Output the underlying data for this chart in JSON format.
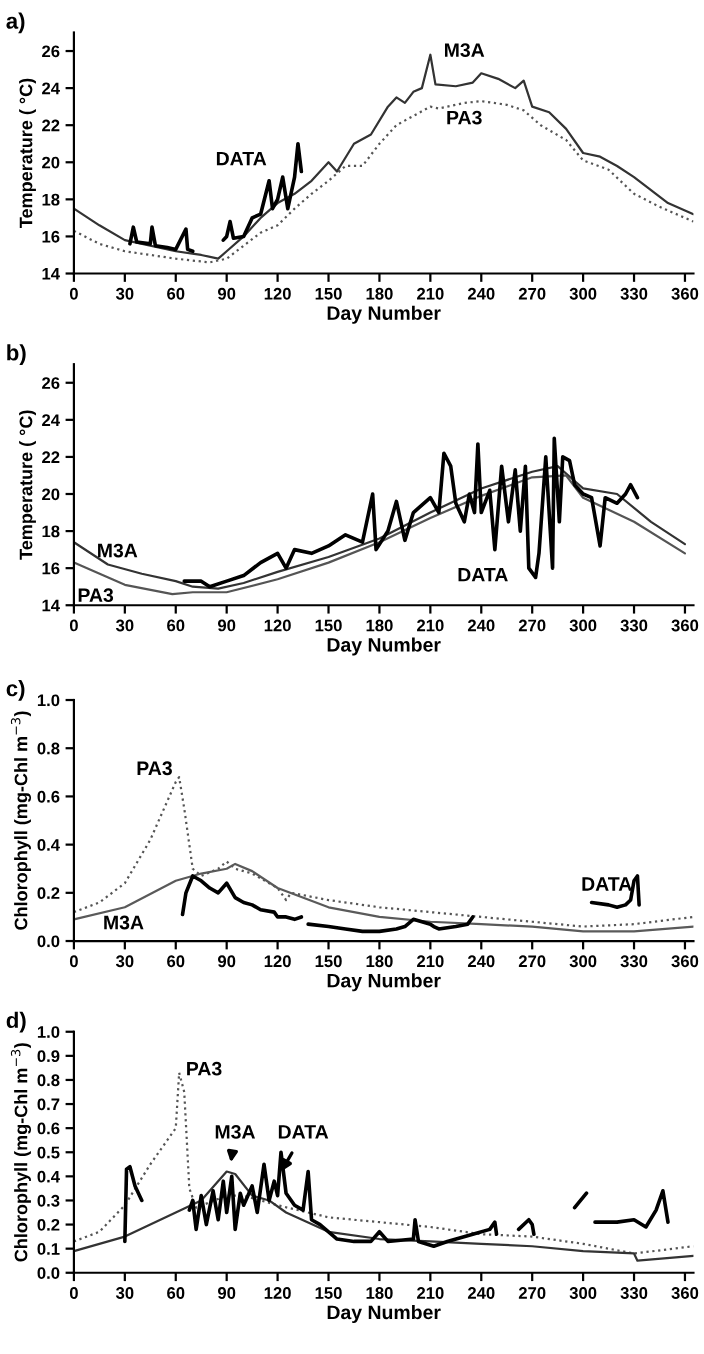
{
  "chart_data": [
    {
      "type": "line",
      "title": "a)",
      "xlabel": "Day Number",
      "ylabel": "Temperature ( °C)",
      "xlim": [
        0,
        365
      ],
      "xticks": [
        0,
        30,
        60,
        90,
        120,
        150,
        180,
        210,
        240,
        270,
        300,
        330,
        360
      ],
      "ylim": [
        14,
        27
      ],
      "yticks": [
        14,
        16,
        18,
        20,
        22,
        24,
        26
      ],
      "grid": false,
      "legend": false,
      "series": [
        {
          "name": "M3A",
          "color": "#333333",
          "line_style": "solid",
          "x": [
            0,
            15,
            30,
            60,
            75,
            85,
            90,
            100,
            110,
            120,
            130,
            140,
            150,
            155,
            165,
            175,
            185,
            190,
            195,
            200,
            205,
            210,
            213,
            225,
            235,
            240,
            250,
            260,
            265,
            270,
            280,
            290,
            300,
            310,
            320,
            330,
            340,
            350,
            365
          ],
          "values": [
            17.5,
            16.6,
            15.8,
            15.2,
            15.0,
            14.8,
            15.2,
            16.0,
            17.0,
            17.8,
            18.3,
            19.0,
            20.0,
            19.5,
            21.0,
            21.5,
            23.0,
            23.5,
            23.2,
            23.8,
            24.0,
            25.8,
            24.2,
            24.1,
            24.3,
            24.8,
            24.5,
            24.0,
            24.4,
            23.0,
            22.7,
            21.8,
            20.5,
            20.3,
            19.8,
            19.2,
            18.5,
            17.8,
            17.2
          ]
        },
        {
          "name": "PA3",
          "color": "#555555",
          "line_style": "dotted",
          "x": [
            0,
            15,
            30,
            60,
            80,
            90,
            100,
            110,
            120,
            130,
            140,
            150,
            160,
            170,
            180,
            190,
            200,
            210,
            215,
            230,
            240,
            255,
            265,
            275,
            290,
            300,
            315,
            330,
            345,
            365
          ],
          "values": [
            16.3,
            15.6,
            15.2,
            14.8,
            14.6,
            14.8,
            15.5,
            16.2,
            16.6,
            17.5,
            18.3,
            19.0,
            19.8,
            19.8,
            21.0,
            22.0,
            22.5,
            23.0,
            22.9,
            23.2,
            23.3,
            23.1,
            22.8,
            22.0,
            21.2,
            20.1,
            19.6,
            18.3,
            17.6,
            16.8
          ]
        },
        {
          "name": "DATA",
          "color": "#000000",
          "line_style": "solid",
          "x": [
            33,
            35,
            37,
            45,
            46,
            48,
            55,
            60,
            66,
            67,
            70,
            80,
            88,
            90,
            92,
            94,
            100,
            105,
            110,
            115,
            117,
            120,
            123,
            126,
            130,
            132,
            134
          ],
          "values": [
            15.6,
            16.5,
            15.7,
            15.6,
            16.5,
            15.5,
            15.4,
            15.3,
            16.4,
            15.3,
            15.2,
            null,
            15.8,
            16.0,
            16.8,
            15.9,
            16.0,
            17.0,
            17.2,
            19.0,
            17.5,
            18.0,
            19.2,
            17.5,
            19.2,
            21.0,
            19.5
          ]
        }
      ]
    },
    {
      "type": "line",
      "title": "b)",
      "xlabel": "Day Number",
      "ylabel": "Temperature ( °C)",
      "xlim": [
        0,
        365
      ],
      "xticks": [
        0,
        30,
        60,
        90,
        120,
        150,
        180,
        210,
        240,
        270,
        300,
        330,
        360
      ],
      "ylim": [
        14,
        27
      ],
      "yticks": [
        14,
        16,
        18,
        20,
        22,
        24,
        26
      ],
      "grid": false,
      "legend": false,
      "series": [
        {
          "name": "M3A",
          "color": "#333333",
          "line_style": "solid",
          "x": [
            0,
            20,
            40,
            60,
            70,
            85,
            100,
            120,
            150,
            180,
            210,
            240,
            270,
            285,
            295,
            300,
            320,
            340,
            360
          ],
          "values": [
            17.4,
            16.2,
            15.7,
            15.3,
            15.0,
            14.9,
            15.2,
            15.8,
            16.6,
            17.6,
            19.0,
            20.3,
            21.2,
            21.5,
            20.7,
            20.3,
            20.0,
            18.5,
            17.3
          ]
        },
        {
          "name": "PA3",
          "color": "#555555",
          "line_style": "solid",
          "x": [
            0,
            30,
            58,
            70,
            90,
            120,
            150,
            180,
            210,
            240,
            270,
            290,
            300,
            330,
            360
          ],
          "values": [
            16.3,
            15.1,
            14.6,
            14.7,
            14.7,
            15.4,
            16.3,
            17.4,
            18.7,
            19.9,
            20.9,
            21.0,
            19.8,
            18.5,
            16.8
          ]
        },
        {
          "name": "DATA",
          "color": "#000000",
          "line_style": "solid",
          "x": [
            65,
            75,
            80,
            90,
            100,
            110,
            120,
            125,
            130,
            140,
            150,
            160,
            170,
            176,
            178,
            185,
            190,
            195,
            200,
            210,
            215,
            218,
            222,
            225,
            230,
            233,
            236,
            238,
            240,
            245,
            248,
            252,
            256,
            260,
            263,
            266,
            268,
            272,
            274,
            278,
            280,
            282,
            283,
            286,
            288,
            292,
            295,
            300,
            305,
            310,
            313,
            320,
            325,
            328,
            332
          ],
          "values": [
            15.3,
            15.3,
            15.0,
            15.3,
            15.6,
            16.3,
            16.8,
            16.0,
            17.0,
            16.8,
            17.2,
            17.8,
            17.4,
            20.0,
            17.0,
            18.0,
            19.6,
            17.5,
            19.0,
            19.8,
            19.0,
            22.2,
            21.5,
            19.5,
            18.5,
            20.0,
            19.0,
            22.7,
            19.0,
            20.2,
            17.0,
            21.5,
            18.5,
            21.3,
            18.0,
            21.5,
            16.0,
            15.5,
            16.8,
            22.0,
            19.0,
            16.0,
            23.0,
            18.5,
            22.0,
            21.8,
            20.5,
            20.0,
            19.8,
            17.2,
            19.8,
            19.5,
            20.0,
            20.5,
            19.8
          ]
        }
      ]
    },
    {
      "type": "line",
      "title": "c)",
      "xlabel": "Day Number",
      "ylabel": "Chlorophyll (mg-Chl m$^{−3}$)",
      "xlim": [
        0,
        365
      ],
      "xticks": [
        0,
        30,
        60,
        90,
        120,
        150,
        180,
        210,
        240,
        270,
        300,
        330,
        360
      ],
      "ylim": [
        0,
        1
      ],
      "yticks": [
        {
          "value": 0,
          "label": "0.0"
        },
        {
          "value": 0.2,
          "label": "0.2"
        },
        {
          "value": 0.4,
          "label": "0.4"
        },
        {
          "value": 0.6,
          "label": "0.6"
        },
        {
          "value": 0.8,
          "label": "0.8"
        },
        {
          "value": 1,
          "label": "1.0"
        }
      ],
      "grid": false,
      "legend": false,
      "series": [
        {
          "name": "PA3",
          "color": "#555555",
          "line_style": "dotted",
          "x": [
            0,
            15,
            30,
            45,
            55,
            60,
            62,
            65,
            70,
            75,
            85,
            90,
            95,
            105,
            120,
            125,
            128,
            150,
            180,
            210,
            240,
            270,
            300,
            330,
            365
          ],
          "values": [
            0.12,
            0.16,
            0.24,
            0.42,
            0.58,
            0.66,
            0.68,
            0.55,
            0.3,
            0.27,
            0.3,
            0.33,
            0.3,
            0.28,
            0.22,
            0.17,
            0.2,
            0.17,
            0.14,
            0.12,
            0.1,
            0.08,
            0.06,
            0.07,
            0.1
          ]
        },
        {
          "name": "M3A",
          "color": "#5a5a5a",
          "line_style": "solid",
          "x": [
            0,
            30,
            60,
            75,
            90,
            95,
            105,
            120,
            150,
            180,
            210,
            240,
            270,
            300,
            330,
            365
          ],
          "values": [
            0.09,
            0.14,
            0.25,
            0.28,
            0.3,
            0.32,
            0.29,
            0.22,
            0.14,
            0.1,
            0.08,
            0.07,
            0.06,
            0.04,
            0.04,
            0.06
          ]
        },
        {
          "name": "DATA",
          "color": "#000000",
          "line_style": "solid",
          "x": [
            64,
            66,
            70,
            75,
            80,
            85,
            90,
            95,
            100,
            105,
            110,
            118,
            120,
            125,
            130,
            134,
            136,
            138,
            150,
            160,
            170,
            180,
            190,
            195,
            200,
            205,
            210,
            212,
            215,
            225,
            232,
            235,
            270,
            305,
            315,
            320,
            325,
            328,
            330,
            332,
            333
          ],
          "values": [
            0.11,
            0.2,
            0.27,
            0.25,
            0.22,
            0.2,
            0.24,
            0.18,
            0.16,
            0.15,
            0.13,
            0.12,
            0.1,
            0.1,
            0.09,
            0.1,
            null,
            0.07,
            0.06,
            0.05,
            0.04,
            0.04,
            0.05,
            0.06,
            0.09,
            0.08,
            0.07,
            0.06,
            0.05,
            0.06,
            0.07,
            0.1,
            null,
            0.16,
            0.15,
            0.14,
            0.15,
            0.17,
            0.25,
            0.27,
            0.15
          ]
        }
      ]
    },
    {
      "type": "line",
      "title": "d)",
      "xlabel": "Day Number",
      "ylabel": "Chlorophyll (mg-Chl m$^{−3}$)",
      "xlim": [
        0,
        365
      ],
      "xticks": [
        0,
        30,
        60,
        90,
        120,
        150,
        180,
        210,
        240,
        270,
        300,
        330,
        360
      ],
      "ylim": [
        0,
        1
      ],
      "yticks": [
        {
          "value": 0,
          "label": "0.0"
        },
        {
          "value": 0.1,
          "label": "0.1"
        },
        {
          "value": 0.2,
          "label": "0.2"
        },
        {
          "value": 0.3,
          "label": "0.3"
        },
        {
          "value": 0.4,
          "label": "0.4"
        },
        {
          "value": 0.5,
          "label": "0.5"
        },
        {
          "value": 0.6,
          "label": "0.6"
        },
        {
          "value": 0.7,
          "label": "0.7"
        },
        {
          "value": 0.8,
          "label": "0.8"
        },
        {
          "value": 0.9,
          "label": "0.9"
        },
        {
          "value": 1,
          "label": "1.0"
        }
      ],
      "grid": false,
      "legend": false,
      "series": [
        {
          "name": "PA3",
          "color": "#555555",
          "line_style": "dotted",
          "x": [
            0,
            15,
            30,
            45,
            55,
            60,
            62,
            65,
            68,
            72,
            90,
            100,
            110,
            120,
            150,
            180,
            210,
            240,
            270,
            300,
            330,
            365
          ],
          "values": [
            0.13,
            0.17,
            0.28,
            0.45,
            0.55,
            0.6,
            0.83,
            0.75,
            0.35,
            0.27,
            0.32,
            0.32,
            0.3,
            0.28,
            0.23,
            0.21,
            0.19,
            0.16,
            0.15,
            0.12,
            0.08,
            0.11
          ]
        },
        {
          "name": "M3A",
          "color": "#333333",
          "line_style": "solid",
          "x": [
            0,
            30,
            60,
            75,
            90,
            95,
            105,
            115,
            125,
            150,
            180,
            210,
            240,
            270,
            300,
            330,
            332,
            365
          ],
          "values": [
            0.09,
            0.15,
            0.25,
            0.3,
            0.42,
            0.41,
            0.32,
            0.3,
            0.25,
            0.17,
            0.14,
            0.13,
            0.12,
            0.11,
            0.09,
            0.08,
            0.05,
            0.07
          ]
        },
        {
          "name": "DATA",
          "color": "#000000",
          "line_style": "solid",
          "x": [
            30,
            31,
            33,
            36,
            40,
            55,
            68,
            70,
            72,
            75,
            78,
            82,
            85,
            88,
            90,
            93,
            95,
            98,
            100,
            105,
            108,
            112,
            115,
            118,
            120,
            122,
            125,
            130,
            135,
            138,
            140,
            145,
            150,
            155,
            165,
            175,
            180,
            185,
            200,
            201,
            203,
            212,
            220,
            235,
            245,
            248,
            249,
            255,
            262,
            268,
            270,
            271,
            280,
            295,
            302,
            304,
            307,
            320,
            330,
            337,
            343,
            347,
            350
          ],
          "values": [
            0.13,
            0.43,
            0.44,
            0.36,
            0.3,
            null,
            0.26,
            0.3,
            0.18,
            0.32,
            0.2,
            0.34,
            0.22,
            0.38,
            0.25,
            0.4,
            0.18,
            0.33,
            0.28,
            0.36,
            0.25,
            0.45,
            0.3,
            0.38,
            0.32,
            0.5,
            0.33,
            0.28,
            0.26,
            0.42,
            0.22,
            0.2,
            0.17,
            0.14,
            0.13,
            0.13,
            0.17,
            0.13,
            0.14,
            0.22,
            0.13,
            0.11,
            0.13,
            0.16,
            0.18,
            0.21,
            0.16,
            null,
            0.18,
            0.22,
            0.2,
            0.16,
            null,
            0.27,
            0.33,
            null,
            0.21,
            0.21,
            0.22,
            0.19,
            0.26,
            0.34,
            0.21
          ]
        }
      ]
    }
  ]
}
